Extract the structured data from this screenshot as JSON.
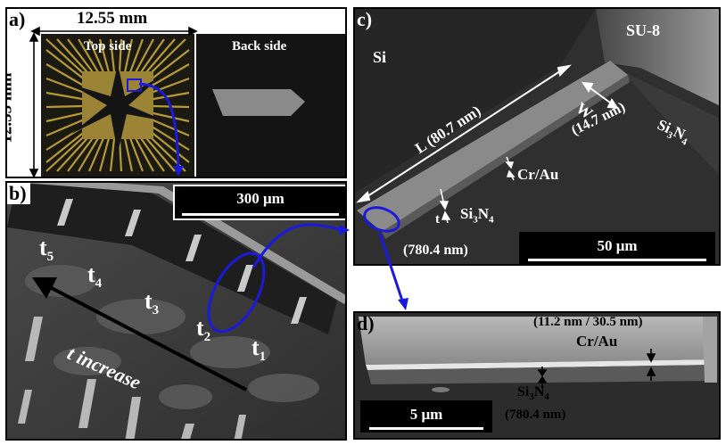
{
  "panel_a": {
    "label": "a)",
    "width_dim": "12.55 mm",
    "height_dim": "12.55 mm",
    "top_side": "Top side",
    "back_side": "Back side"
  },
  "panel_b": {
    "label": "b)",
    "scale": "300 μm",
    "t_labels": [
      "t",
      "t",
      "t",
      "t",
      "t"
    ],
    "t_subs": [
      "5",
      "4",
      "3",
      "2",
      "1"
    ],
    "t_increase": "t increase"
  },
  "panel_c": {
    "label": "c)",
    "si": "Si",
    "su8": "SU-8",
    "length": "L (80.7 nm)",
    "w": "W",
    "width_val": "(14.7 nm)",
    "si3n4_right_main": "Si",
    "si3n4_right_sub1": "3",
    "si3n4_right_n": "N",
    "si3n4_right_sub2": "4",
    "cr_au": "Cr/Au",
    "si3n4_main": "Si",
    "si3n4_sub1": "3",
    "si3n4_n": "N",
    "si3n4_sub2": "4",
    "t": "t",
    "t_val": "(780.4 nm)",
    "scale": "50 μm"
  },
  "panel_d": {
    "label": "d)",
    "top_thickness": "(11.2 nm / 30.5 nm)",
    "cr_au": "Cr/Au",
    "si3n4_main": "Si",
    "si3n4_sub1": "3",
    "si3n4_n": "N",
    "si3n4_sub2": "4",
    "si3n4_val": "(780.4 nm)",
    "scale": "5 μm"
  },
  "colors": {
    "annotation_blue": "#1a1adc",
    "sem_dark": "#3a3a3a",
    "chip_gold": "#b0922e",
    "chip_dark": "#141414"
  }
}
